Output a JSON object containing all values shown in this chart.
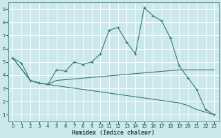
{
  "xlabel": "Humidex (Indice chaleur)",
  "ylabel": "",
  "bg_color": "#cce8ec",
  "grid_color": "#ffffff",
  "line_color": "#2e7d6e",
  "xlim": [
    -0.5,
    23.5
  ],
  "ylim": [
    0.5,
    9.5
  ],
  "xticks": [
    0,
    1,
    2,
    3,
    4,
    5,
    6,
    7,
    8,
    9,
    10,
    11,
    12,
    13,
    14,
    15,
    16,
    17,
    18,
    19,
    20,
    21,
    22,
    23
  ],
  "yticks": [
    1,
    2,
    3,
    4,
    5,
    6,
    7,
    8,
    9
  ],
  "lines": [
    {
      "x": [
        0,
        1,
        2,
        3,
        4,
        5,
        6,
        7,
        8,
        9,
        10,
        11,
        12,
        13,
        14,
        15,
        16,
        17,
        18,
        19,
        20,
        21,
        22,
        23
      ],
      "y": [
        5.3,
        4.9,
        3.6,
        3.4,
        3.3,
        4.4,
        4.3,
        5.0,
        4.8,
        5.0,
        5.6,
        7.4,
        7.6,
        6.5,
        5.6,
        9.1,
        8.5,
        8.1,
        6.8,
        4.7,
        3.8,
        2.9,
        1.4,
        1.0
      ],
      "marker": true
    },
    {
      "x": [
        0,
        2,
        3,
        4,
        5,
        19,
        20,
        21,
        22,
        23
      ],
      "y": [
        5.3,
        3.6,
        3.4,
        3.3,
        3.6,
        4.4,
        4.4,
        4.4,
        4.4,
        4.4
      ],
      "marker": false
    },
    {
      "x": [
        0,
        2,
        3,
        4,
        5,
        19,
        20,
        21,
        22,
        23
      ],
      "y": [
        5.3,
        3.6,
        3.4,
        3.3,
        3.2,
        1.9,
        1.7,
        1.4,
        1.2,
        1.0
      ],
      "marker": false
    }
  ]
}
